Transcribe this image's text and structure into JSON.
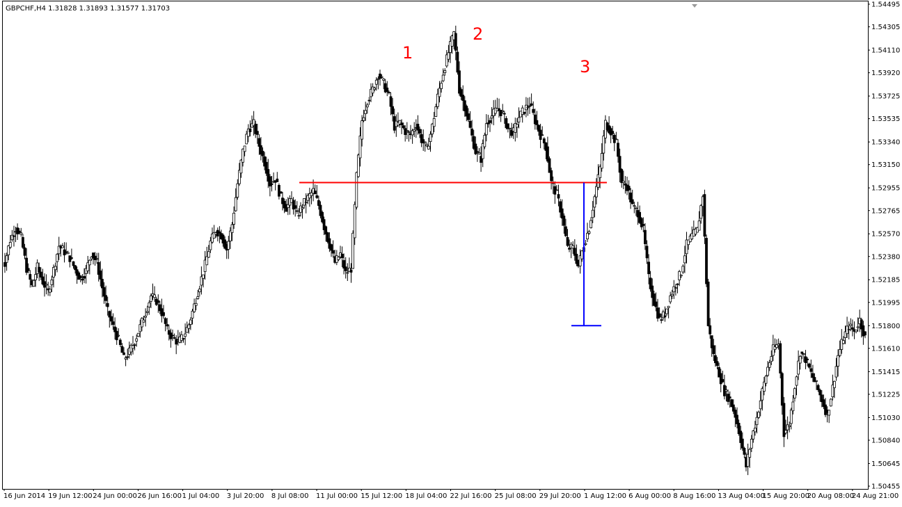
{
  "window": {
    "symbol_header": "GBPCHF,H4  1.31828 1.31893 1.31577 1.31703"
  },
  "chart_data": {
    "type": "candlestick",
    "symbol": "GBPCHF",
    "timeframe": "H4",
    "ohlc_header": {
      "open": 1.31828,
      "high": 1.31893,
      "low": 1.31577,
      "close": 1.31703
    },
    "ylim": [
      1.50455,
      1.54495
    ],
    "yticks": [
      "1.54495",
      "1.54305",
      "1.54110",
      "1.53920",
      "1.53725",
      "1.53535",
      "1.53340",
      "1.53150",
      "1.52955",
      "1.52765",
      "1.52570",
      "1.52380",
      "1.52185",
      "1.51995",
      "1.51800",
      "1.51610",
      "1.51415",
      "1.51225",
      "1.51030",
      "1.50840",
      "1.50645",
      "1.50455"
    ],
    "xticks": [
      "16 Jun 2014",
      "19 Jun 12:00",
      "24 Jun 00:00",
      "26 Jun 16:00",
      "1 Jul 04:00",
      "3 Jul 20:00",
      "8 Jul 08:00",
      "11 Jul 00:00",
      "15 Jul 12:00",
      "18 Jul 04:00",
      "22 Jul 16:00",
      "25 Jul 08:00",
      "29 Jul 20:00",
      "1 Aug 12:00",
      "6 Aug 00:00",
      "8 Aug 16:00",
      "13 Aug 04:00",
      "15 Aug 20:00",
      "20 Aug 08:00",
      "24 Aug 21:00"
    ],
    "close_path": [
      1.5233,
      1.5252,
      1.5262,
      1.5254,
      1.5228,
      1.5213,
      1.5229,
      1.5217,
      1.5208,
      1.5227,
      1.5247,
      1.5242,
      1.5237,
      1.5227,
      1.5219,
      1.5226,
      1.5241,
      1.5233,
      1.5212,
      1.5192,
      1.5179,
      1.5168,
      1.5152,
      1.5158,
      1.5167,
      1.5179,
      1.5191,
      1.5205,
      1.5201,
      1.5191,
      1.5176,
      1.517,
      1.5166,
      1.5171,
      1.5181,
      1.5197,
      1.5214,
      1.5231,
      1.525,
      1.526,
      1.5256,
      1.5244,
      1.5265,
      1.5299,
      1.5326,
      1.5345,
      1.5349,
      1.5331,
      1.5317,
      1.5299,
      1.5303,
      1.5287,
      1.5279,
      1.5285,
      1.5272,
      1.5281,
      1.5287,
      1.5293,
      1.5281,
      1.5263,
      1.5248,
      1.5233,
      1.524,
      1.5224,
      1.5228,
      1.5305,
      1.5352,
      1.5369,
      1.5378,
      1.5391,
      1.5383,
      1.5372,
      1.5347,
      1.535,
      1.5343,
      1.534,
      1.5349,
      1.5336,
      1.5328,
      1.5347,
      1.5372,
      1.5392,
      1.5409,
      1.5425,
      1.5378,
      1.5364,
      1.5345,
      1.5326,
      1.532,
      1.535,
      1.5356,
      1.5362,
      1.5358,
      1.5345,
      1.5342,
      1.5355,
      1.5361,
      1.5366,
      1.5352,
      1.534,
      1.533,
      1.53,
      1.529,
      1.5272,
      1.5245,
      1.5245,
      1.523,
      1.5248,
      1.5262,
      1.5288,
      1.5312,
      1.535,
      1.5343,
      1.5333,
      1.53,
      1.5297,
      1.528,
      1.5275,
      1.526,
      1.522,
      1.52,
      1.5185,
      1.519,
      1.5205,
      1.5215,
      1.5225,
      1.5248,
      1.5255,
      1.526,
      1.529,
      1.518,
      1.5155,
      1.514,
      1.5125,
      1.5118,
      1.5105,
      1.5085,
      1.5062,
      1.5085,
      1.5103,
      1.5125,
      1.5145,
      1.516,
      1.5165,
      1.509,
      1.5098,
      1.513,
      1.5158,
      1.5152,
      1.514,
      1.513,
      1.5118,
      1.5105,
      1.5128,
      1.5155,
      1.517,
      1.518,
      1.5175,
      1.5185,
      1.517
    ],
    "annotations": {
      "peak_labels": [
        "1",
        "2",
        "3"
      ],
      "peak_positions": [
        {
          "time": "17 Jul 12:00",
          "price": 1.541
        },
        {
          "time": "22 Jul 16:00",
          "price": 1.543
        },
        {
          "time": "31 Jul 08:00",
          "price": 1.539
        }
      ],
      "neckline": {
        "price": 1.53,
        "from": "11 Jul 00:00",
        "to": "1 Aug 12:00",
        "color": "#ff0000"
      },
      "projection": {
        "from_price": 1.53,
        "to_price": 1.518,
        "time": "1 Aug 00:00",
        "color": "#0000ff"
      }
    },
    "grid": false,
    "colors": {
      "background": "#ffffff",
      "candle": "#000000",
      "neckline": "#ff0000",
      "projection": "#0000ff",
      "labels": "#ff0000"
    }
  }
}
